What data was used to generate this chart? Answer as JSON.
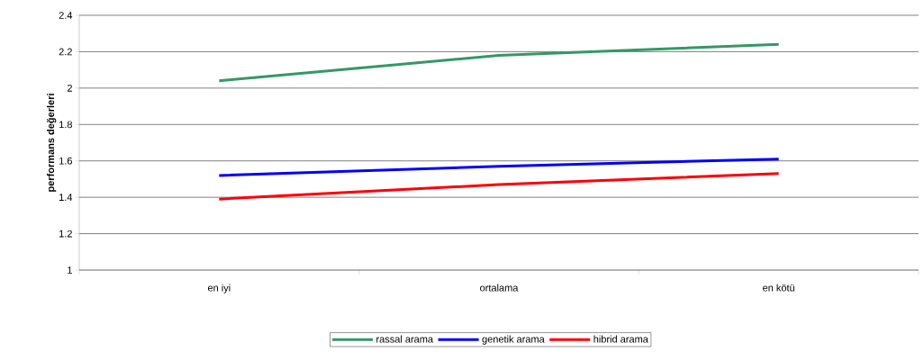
{
  "chart_data": {
    "type": "line",
    "ylabel": "performans değerleri",
    "categories": [
      "en iyi",
      "ortalama",
      "en kötü"
    ],
    "series": [
      {
        "name": "rassal arama",
        "color": "#339966",
        "values": [
          2.04,
          2.18,
          2.24
        ]
      },
      {
        "name": "genetik arama",
        "color": "#0000ff",
        "values": [
          1.52,
          1.57,
          1.61
        ]
      },
      {
        "name": "hibrid arama",
        "color": "#ff0000",
        "values": [
          1.39,
          1.47,
          1.53
        ]
      }
    ],
    "ylim": [
      1,
      2.4
    ],
    "yticks": [
      1,
      1.2,
      1.4,
      1.6,
      1.8,
      2,
      2.2,
      2.4
    ],
    "grid": "y",
    "legend": "bottom",
    "marker": "none",
    "line_style": "solid"
  }
}
